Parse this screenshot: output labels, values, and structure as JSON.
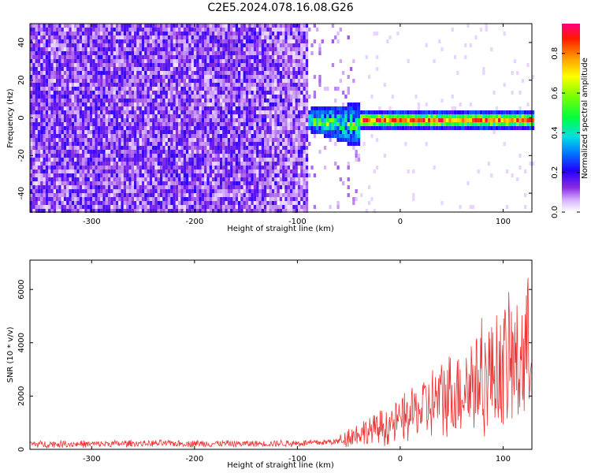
{
  "figure": {
    "title": "C2E5.2024.078.16.08.G26"
  },
  "chart_data": [
    {
      "type": "heatmap",
      "title": "C2E5.2024.078.16.08.G26",
      "xlabel": "Height of straight line (km)",
      "ylabel": "Frequency (Hz)",
      "xlim": [
        -360,
        128
      ],
      "ylim": [
        -50,
        50
      ],
      "xticks": [
        -300,
        -200,
        -100,
        0,
        100
      ],
      "yticks": [
        -40,
        -20,
        0,
        20,
        40
      ],
      "colorbar": {
        "label": "Normalized spectral amplitude",
        "range": [
          0,
          0.95
        ],
        "ticks": [
          0.0,
          0.2,
          0.4,
          0.6,
          0.8
        ],
        "colormap": "white-violet-blue-cyan-green-yellow-red-magenta"
      },
      "description_points": [
        {
          "x_range": [
            -360,
            -90
          ],
          "freq_range": [
            -50,
            50
          ],
          "amplitude": 0.05,
          "pattern": "scattered noise"
        },
        {
          "x_range": [
            -90,
            -40
          ],
          "freq_range": [
            -18,
            12
          ],
          "amplitude": 0.3,
          "pattern": "transition"
        },
        {
          "x_range": [
            -40,
            128
          ],
          "freq_range": [
            -4,
            4
          ],
          "amplitude": 0.9,
          "pattern": "carrier line near 0 Hz"
        }
      ]
    },
    {
      "type": "line",
      "xlabel": "Height of straight line (km)",
      "ylabel": "SNR (10 * v/v)",
      "xlim": [
        -360,
        128
      ],
      "ylim": [
        0,
        7100
      ],
      "xticks": [
        -300,
        -200,
        -100,
        0,
        100
      ],
      "yticks": [
        0,
        2000,
        4000,
        6000
      ],
      "series": [
        {
          "color": "#ee3333",
          "x": [
            -360,
            -300,
            -250,
            -200,
            -150,
            -100,
            -80,
            -60,
            -50,
            -40,
            -30,
            -20,
            -10,
            0,
            10,
            20,
            30,
            40,
            50,
            60,
            70,
            80,
            90,
            100,
            110,
            120,
            128
          ],
          "y": [
            200,
            200,
            220,
            220,
            210,
            230,
            250,
            300,
            500,
            600,
            700,
            800,
            900,
            1100,
            1300,
            1500,
            1700,
            1900,
            2100,
            2300,
            2500,
            2700,
            2900,
            3100,
            3300,
            3500,
            3600
          ]
        }
      ]
    }
  ]
}
